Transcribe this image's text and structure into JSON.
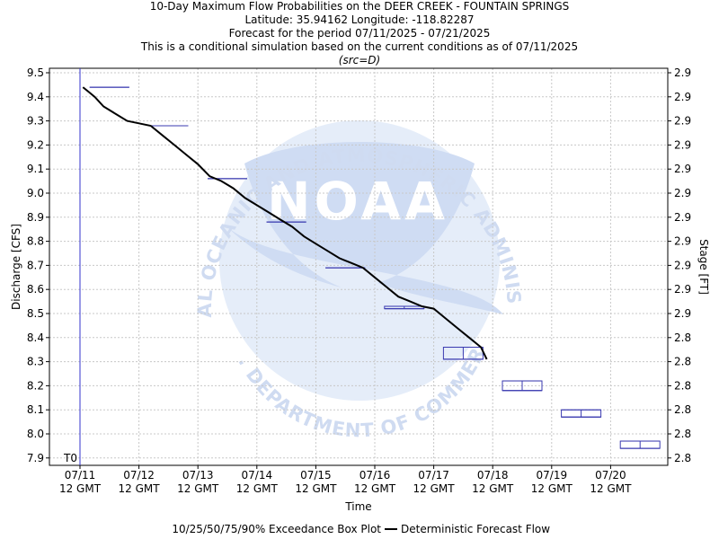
{
  "chart_data": {
    "type": "box",
    "title_lines": [
      "10-Day Maximum Flow Probabilities on the DEER CREEK - FOUNTAIN SPRINGS",
      "Latitude: 35.94162 Longitude: -118.82287",
      "Forecast for the period 07/11/2025 - 07/21/2025",
      "This is a conditional simulation based on the current conditions as of 07/11/2025"
    ],
    "source_note": "(src=D)",
    "xlabel": "Time",
    "ylabel_left": "Discharge [CFS]",
    "ylabel_right": "Stage [FT]",
    "ylim": [
      7.88,
      9.52
    ],
    "left_ticks": [
      "9.5",
      "9.4",
      "9.3",
      "9.2",
      "9.1",
      "9.0",
      "8.9",
      "8.8",
      "8.7",
      "8.6",
      "8.5",
      "8.4",
      "8.3",
      "8.2",
      "8.1",
      "8.0",
      "7.9"
    ],
    "right_ticks": [
      "2.9",
      "2.9",
      "2.9",
      "2.9",
      "2.9",
      "2.9",
      "2.9",
      "2.9",
      "2.9",
      "2.9",
      "2.9",
      "2.8",
      "2.8",
      "2.8",
      "2.8",
      "2.8",
      "2.8"
    ],
    "x_ticks": [
      {
        "date": "07/11",
        "time": "12 GMT"
      },
      {
        "date": "07/12",
        "time": "12 GMT"
      },
      {
        "date": "07/13",
        "time": "12 GMT"
      },
      {
        "date": "07/14",
        "time": "12 GMT"
      },
      {
        "date": "07/15",
        "time": "12 GMT"
      },
      {
        "date": "07/16",
        "time": "12 GMT"
      },
      {
        "date": "07/17",
        "time": "12 GMT"
      },
      {
        "date": "07/18",
        "time": "12 GMT"
      },
      {
        "date": "07/19",
        "time": "12 GMT"
      },
      {
        "date": "07/20",
        "time": "12 GMT"
      }
    ],
    "t0_label": "T0",
    "boxes": [
      {
        "day": 0.5,
        "p10": 9.44,
        "p25": 9.44,
        "p50": 9.44,
        "p75": 9.44,
        "p90": 9.44
      },
      {
        "day": 1.5,
        "p10": 9.28,
        "p25": 9.28,
        "p50": 9.28,
        "p75": 9.28,
        "p90": 9.28
      },
      {
        "day": 2.5,
        "p10": 9.06,
        "p25": 9.06,
        "p50": 9.06,
        "p75": 9.06,
        "p90": 9.06
      },
      {
        "day": 3.5,
        "p10": 8.88,
        "p25": 8.88,
        "p50": 8.88,
        "p75": 8.88,
        "p90": 8.88
      },
      {
        "day": 4.5,
        "p10": 8.69,
        "p25": 8.69,
        "p50": 8.69,
        "p75": 8.69,
        "p90": 8.69
      },
      {
        "day": 5.5,
        "p10": 8.52,
        "p25": 8.52,
        "p50": 8.52,
        "p75": 8.53,
        "p90": 8.53
      },
      {
        "day": 6.5,
        "p10": 8.31,
        "p25": 8.31,
        "p50": 8.31,
        "p75": 8.36,
        "p90": 8.36
      },
      {
        "day": 7.5,
        "p10": 8.18,
        "p25": 8.18,
        "p50": 8.18,
        "p75": 8.22,
        "p90": 8.22
      },
      {
        "day": 8.5,
        "p10": 8.07,
        "p25": 8.07,
        "p50": 8.07,
        "p75": 8.1,
        "p90": 8.1
      },
      {
        "day": 9.5,
        "p10": 7.94,
        "p25": 7.94,
        "p50": 7.94,
        "p75": 7.97,
        "p90": 7.97
      }
    ],
    "deterministic": {
      "x": [
        0.05,
        0.15,
        0.25,
        0.4,
        0.6,
        0.8,
        1.0,
        1.2,
        1.4,
        1.6,
        1.8,
        2.0,
        2.2,
        2.4,
        2.6,
        2.8,
        3.0,
        3.2,
        3.4,
        3.6,
        3.8,
        4.0,
        4.2,
        4.4,
        4.6,
        4.8,
        5.0,
        5.2,
        5.4,
        5.6,
        5.8,
        6.0,
        6.2,
        6.4,
        6.6,
        6.8,
        6.9
      ],
      "y": [
        9.44,
        9.42,
        9.4,
        9.36,
        9.33,
        9.3,
        9.29,
        9.28,
        9.24,
        9.2,
        9.16,
        9.12,
        9.07,
        9.05,
        9.02,
        8.98,
        8.95,
        8.92,
        8.89,
        8.86,
        8.82,
        8.79,
        8.76,
        8.73,
        8.71,
        8.69,
        8.65,
        8.61,
        8.57,
        8.55,
        8.53,
        8.52,
        8.48,
        8.44,
        8.4,
        8.36,
        8.31
      ]
    },
    "legend": {
      "box_label": "10/25/50/75/90% Exceedance Box Plot",
      "line_label": "Deterministic Forecast Flow"
    },
    "watermark": {
      "ring_text_top": "NATIONAL OCEANIC AND ATMOSPHERIC ADMINISTRATION",
      "ring_text_bottom": "U.S. DEPARTMENT OF COMMERCE",
      "center_text": "NOAA"
    },
    "colors": {
      "box": "#3a3ab0",
      "line": "#000000",
      "t0_line": "#3333cc",
      "grid": "#c8c8c8",
      "watermark_fill": "#d8e4f6",
      "watermark_text": "#c9d5ee"
    }
  }
}
